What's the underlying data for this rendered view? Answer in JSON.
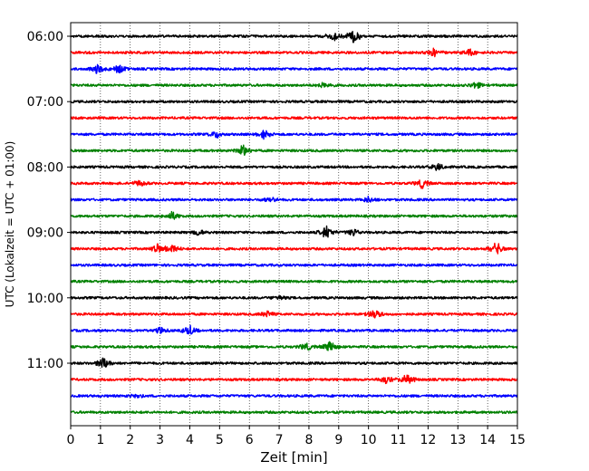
{
  "chart_data": {
    "type": "line",
    "chart_kind": "helicorder (seismogram drum plot)",
    "xlabel": "Zeit  [min]",
    "ylabel": "UTC (Lokalzeit = UTC + 01:00)",
    "xlim": [
      0,
      15
    ],
    "x_ticks": [
      0,
      1,
      2,
      3,
      4,
      5,
      6,
      7,
      8,
      9,
      10,
      11,
      12,
      13,
      14,
      15
    ],
    "x_grid": "dotted vertical lines at each minute",
    "y_tick_labels": [
      {
        "label": "06:00",
        "trace": 0
      },
      {
        "label": "07:00",
        "trace": 4
      },
      {
        "label": "08:00",
        "trace": 8
      },
      {
        "label": "09:00",
        "trace": 12
      },
      {
        "label": "10:00",
        "trace": 16
      },
      {
        "label": "11:00",
        "trace": 20
      }
    ],
    "trace_interval_minutes": 15,
    "trace_colors": [
      "#000000",
      "#ff0000",
      "#0000ff",
      "#008000"
    ],
    "traces": [
      {
        "start": "06:00",
        "color": "#000000",
        "events": [
          [
            8.8,
            0.7
          ],
          [
            9.5,
            1.0
          ]
        ]
      },
      {
        "start": "06:15",
        "color": "#ff0000",
        "events": [
          [
            12.2,
            0.5
          ],
          [
            13.4,
            0.5
          ]
        ]
      },
      {
        "start": "06:30",
        "color": "#0000ff",
        "events": [
          [
            0.9,
            0.7
          ],
          [
            1.6,
            0.6
          ]
        ]
      },
      {
        "start": "06:45",
        "color": "#008000",
        "events": [
          [
            8.5,
            0.4
          ],
          [
            13.6,
            0.5
          ]
        ]
      },
      {
        "start": "07:00",
        "color": "#000000",
        "events": []
      },
      {
        "start": "07:15",
        "color": "#ff0000",
        "events": []
      },
      {
        "start": "07:30",
        "color": "#0000ff",
        "events": [
          [
            4.9,
            0.5
          ],
          [
            6.5,
            0.6
          ]
        ]
      },
      {
        "start": "07:45",
        "color": "#008000",
        "events": [
          [
            5.8,
            0.8
          ]
        ]
      },
      {
        "start": "08:00",
        "color": "#000000",
        "events": [
          [
            12.3,
            0.5
          ]
        ]
      },
      {
        "start": "08:15",
        "color": "#ff0000",
        "events": [
          [
            2.3,
            0.4
          ],
          [
            11.8,
            0.6
          ]
        ]
      },
      {
        "start": "08:30",
        "color": "#0000ff",
        "events": [
          [
            6.7,
            0.4
          ],
          [
            10.0,
            0.4
          ]
        ]
      },
      {
        "start": "08:45",
        "color": "#008000",
        "events": [
          [
            3.4,
            0.6
          ]
        ]
      },
      {
        "start": "09:00",
        "color": "#000000",
        "events": [
          [
            4.3,
            0.4
          ],
          [
            8.6,
            0.9
          ],
          [
            9.5,
            0.5
          ]
        ]
      },
      {
        "start": "09:15",
        "color": "#ff0000",
        "events": [
          [
            2.9,
            0.7
          ],
          [
            3.4,
            0.6
          ],
          [
            14.3,
            0.9
          ]
        ]
      },
      {
        "start": "09:30",
        "color": "#0000ff",
        "events": []
      },
      {
        "start": "09:45",
        "color": "#008000",
        "events": []
      },
      {
        "start": "10:00",
        "color": "#000000",
        "events": [
          [
            7.0,
            0.3
          ]
        ]
      },
      {
        "start": "10:15",
        "color": "#ff0000",
        "events": [
          [
            6.6,
            0.4
          ],
          [
            10.2,
            0.7
          ]
        ]
      },
      {
        "start": "10:30",
        "color": "#0000ff",
        "events": [
          [
            3.0,
            0.4
          ],
          [
            4.0,
            0.7
          ]
        ]
      },
      {
        "start": "10:45",
        "color": "#008000",
        "events": [
          [
            7.9,
            0.5
          ],
          [
            8.7,
            0.7
          ]
        ]
      },
      {
        "start": "11:00",
        "color": "#000000",
        "events": [
          [
            1.1,
            1.0
          ]
        ]
      },
      {
        "start": "11:15",
        "color": "#ff0000",
        "events": [
          [
            10.6,
            0.5
          ],
          [
            11.3,
            0.8
          ]
        ]
      },
      {
        "start": "11:30",
        "color": "#0000ff",
        "events": [
          [
            2.2,
            0.3
          ]
        ]
      },
      {
        "start": "11:45",
        "color": "#008000",
        "events": []
      }
    ]
  }
}
